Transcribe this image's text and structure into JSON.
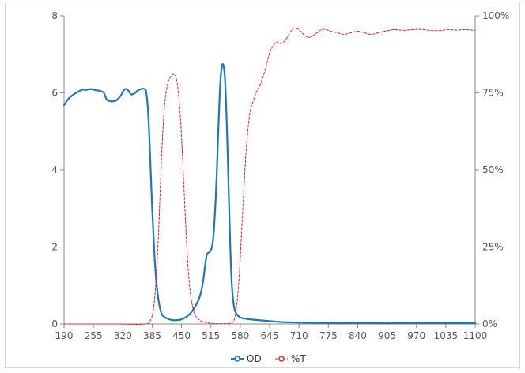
{
  "chart_data": {
    "type": "line",
    "title": "",
    "xlabel": "",
    "ylabel": "",
    "y2label": "",
    "xlim": [
      190,
      1100
    ],
    "ylim": [
      0,
      8
    ],
    "y2lim": [
      0,
      100
    ],
    "x_ticks": [
      190,
      255,
      320,
      385,
      450,
      515,
      580,
      645,
      710,
      775,
      840,
      905,
      970,
      1035,
      1100
    ],
    "y_ticks": [
      0,
      2,
      4,
      6,
      8
    ],
    "y2_ticks": [
      "0%",
      "25%",
      "50%",
      "75%",
      "100%"
    ],
    "legend_position": "bottom-center",
    "grid": false,
    "series": [
      {
        "name": "OD",
        "axis": "left",
        "color": "#1f77b4",
        "style": "solid",
        "points": [
          [
            190,
            5.68
          ],
          [
            200,
            5.85
          ],
          [
            210,
            5.95
          ],
          [
            220,
            6.02
          ],
          [
            230,
            6.08
          ],
          [
            240,
            6.08
          ],
          [
            250,
            6.1
          ],
          [
            260,
            6.07
          ],
          [
            270,
            6.05
          ],
          [
            278,
            6.0
          ],
          [
            285,
            5.82
          ],
          [
            295,
            5.78
          ],
          [
            305,
            5.8
          ],
          [
            315,
            5.92
          ],
          [
            323,
            6.08
          ],
          [
            328,
            6.1
          ],
          [
            333,
            6.05
          ],
          [
            338,
            5.96
          ],
          [
            345,
            5.98
          ],
          [
            352,
            6.05
          ],
          [
            360,
            6.1
          ],
          [
            368,
            6.1
          ],
          [
            372,
            6.0
          ],
          [
            376,
            5.5
          ],
          [
            380,
            4.5
          ],
          [
            385,
            3.0
          ],
          [
            390,
            1.8
          ],
          [
            395,
            1.0
          ],
          [
            400,
            0.55
          ],
          [
            405,
            0.3
          ],
          [
            410,
            0.2
          ],
          [
            420,
            0.13
          ],
          [
            430,
            0.1
          ],
          [
            440,
            0.1
          ],
          [
            450,
            0.12
          ],
          [
            460,
            0.18
          ],
          [
            470,
            0.28
          ],
          [
            480,
            0.45
          ],
          [
            490,
            0.7
          ],
          [
            497,
            1.05
          ],
          [
            502,
            1.5
          ],
          [
            506,
            1.8
          ],
          [
            510,
            1.85
          ],
          [
            515,
            1.92
          ],
          [
            519,
            2.1
          ],
          [
            522,
            2.5
          ],
          [
            525,
            3.1
          ],
          [
            528,
            3.9
          ],
          [
            531,
            4.9
          ],
          [
            534,
            5.8
          ],
          [
            537,
            6.45
          ],
          [
            540,
            6.72
          ],
          [
            543,
            6.7
          ],
          [
            546,
            6.4
          ],
          [
            549,
            5.6
          ],
          [
            552,
            4.5
          ],
          [
            555,
            3.2
          ],
          [
            558,
            2.0
          ],
          [
            561,
            1.1
          ],
          [
            565,
            0.55
          ],
          [
            570,
            0.3
          ],
          [
            580,
            0.17
          ],
          [
            595,
            0.13
          ],
          [
            610,
            0.11
          ],
          [
            630,
            0.09
          ],
          [
            650,
            0.07
          ],
          [
            670,
            0.05
          ],
          [
            700,
            0.04
          ],
          [
            740,
            0.03
          ],
          [
            780,
            0.02
          ],
          [
            820,
            0.02
          ],
          [
            860,
            0.02
          ],
          [
            900,
            0.02
          ],
          [
            940,
            0.02
          ],
          [
            980,
            0.02
          ],
          [
            1020,
            0.02
          ],
          [
            1060,
            0.02
          ],
          [
            1100,
            0.02
          ]
        ]
      },
      {
        "name": "%T",
        "axis": "right",
        "color": "#d62728",
        "style": "dashed",
        "points": [
          [
            190,
            0
          ],
          [
            300,
            0
          ],
          [
            370,
            0
          ],
          [
            382,
            1.5
          ],
          [
            388,
            5
          ],
          [
            393,
            13
          ],
          [
            398,
            26
          ],
          [
            403,
            44
          ],
          [
            407,
            58
          ],
          [
            412,
            70
          ],
          [
            418,
            77
          ],
          [
            425,
            80
          ],
          [
            432,
            81
          ],
          [
            438,
            80
          ],
          [
            443,
            75
          ],
          [
            448,
            66
          ],
          [
            453,
            52
          ],
          [
            458,
            36
          ],
          [
            463,
            22
          ],
          [
            468,
            12
          ],
          [
            474,
            6
          ],
          [
            480,
            3
          ],
          [
            488,
            1.5
          ],
          [
            496,
            0.8
          ],
          [
            510,
            0.3
          ],
          [
            535,
            0.1
          ],
          [
            560,
            0.3
          ],
          [
            567,
            1.5
          ],
          [
            572,
            6
          ],
          [
            577,
            14
          ],
          [
            582,
            27
          ],
          [
            587,
            41
          ],
          [
            592,
            54
          ],
          [
            597,
            63
          ],
          [
            602,
            69
          ],
          [
            608,
            72
          ],
          [
            615,
            75
          ],
          [
            622,
            77
          ],
          [
            630,
            80
          ],
          [
            638,
            84
          ],
          [
            645,
            88
          ],
          [
            652,
            90
          ],
          [
            660,
            91.5
          ],
          [
            668,
            91
          ],
          [
            676,
            91.5
          ],
          [
            684,
            93
          ],
          [
            692,
            95
          ],
          [
            700,
            96
          ],
          [
            710,
            95.5
          ],
          [
            720,
            94
          ],
          [
            730,
            93
          ],
          [
            740,
            93.5
          ],
          [
            750,
            94.5
          ],
          [
            760,
            95.5
          ],
          [
            770,
            95.5
          ],
          [
            780,
            95
          ],
          [
            795,
            94.5
          ],
          [
            810,
            94
          ],
          [
            825,
            94.5
          ],
          [
            840,
            95
          ],
          [
            855,
            94.5
          ],
          [
            870,
            94
          ],
          [
            885,
            94.5
          ],
          [
            900,
            95
          ],
          [
            920,
            95.5
          ],
          [
            940,
            95.3
          ],
          [
            960,
            95.5
          ],
          [
            980,
            95.6
          ],
          [
            1000,
            95.3
          ],
          [
            1020,
            95.2
          ],
          [
            1040,
            95.5
          ],
          [
            1060,
            95.4
          ],
          [
            1080,
            95.5
          ],
          [
            1100,
            95.3
          ]
        ]
      }
    ]
  }
}
